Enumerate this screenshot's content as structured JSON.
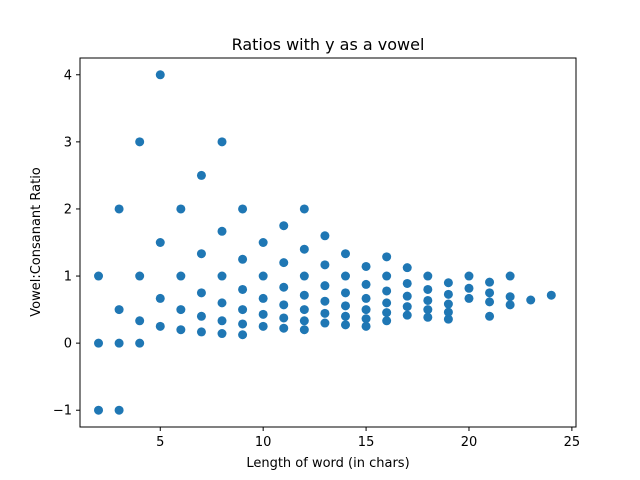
{
  "chart_data": {
    "type": "scatter",
    "title": "Ratios with y as a vowel",
    "xlabel": "Length of word (in chars)",
    "ylabel": "Vowel:Consanant Ratio",
    "xlim": [
      1.1,
      25.2
    ],
    "ylim": [
      -1.25,
      4.25
    ],
    "xticks": [
      5,
      10,
      15,
      20,
      25
    ],
    "yticks": [
      -1,
      0,
      1,
      2,
      3,
      4
    ],
    "grid": false,
    "marker_color": "#1f77b4",
    "points": [
      [
        2,
        -1
      ],
      [
        2,
        0
      ],
      [
        2,
        1
      ],
      [
        3,
        -1
      ],
      [
        3,
        0
      ],
      [
        3,
        0.5
      ],
      [
        3,
        2
      ],
      [
        4,
        0
      ],
      [
        4,
        0.333
      ],
      [
        4,
        1
      ],
      [
        4,
        3
      ],
      [
        5,
        0.25
      ],
      [
        5,
        0.667
      ],
      [
        5,
        1.5
      ],
      [
        5,
        4
      ],
      [
        6,
        0.2
      ],
      [
        6,
        0.5
      ],
      [
        6,
        1
      ],
      [
        6,
        2
      ],
      [
        7,
        0.167
      ],
      [
        7,
        0.4
      ],
      [
        7,
        0.75
      ],
      [
        7,
        1.333
      ],
      [
        7,
        2.5
      ],
      [
        8,
        0.143
      ],
      [
        8,
        0.333
      ],
      [
        8,
        0.6
      ],
      [
        8,
        1
      ],
      [
        8,
        1.667
      ],
      [
        8,
        3
      ],
      [
        9,
        0.125
      ],
      [
        9,
        0.286
      ],
      [
        9,
        0.5
      ],
      [
        9,
        0.8
      ],
      [
        9,
        1.25
      ],
      [
        9,
        2
      ],
      [
        10,
        0.25
      ],
      [
        10,
        0.429
      ],
      [
        10,
        0.667
      ],
      [
        10,
        1
      ],
      [
        10,
        1.5
      ],
      [
        11,
        0.222
      ],
      [
        11,
        0.375
      ],
      [
        11,
        0.571
      ],
      [
        11,
        0.833
      ],
      [
        11,
        1.2
      ],
      [
        11,
        1.75
      ],
      [
        12,
        0.2
      ],
      [
        12,
        0.333
      ],
      [
        12,
        0.5
      ],
      [
        12,
        0.714
      ],
      [
        12,
        1
      ],
      [
        12,
        1.4
      ],
      [
        12,
        2
      ],
      [
        13,
        0.3
      ],
      [
        13,
        0.444
      ],
      [
        13,
        0.625
      ],
      [
        13,
        0.857
      ],
      [
        13,
        1.167
      ],
      [
        13,
        1.6
      ],
      [
        14,
        0.273
      ],
      [
        14,
        0.4
      ],
      [
        14,
        0.556
      ],
      [
        14,
        0.75
      ],
      [
        14,
        1
      ],
      [
        14,
        1.333
      ],
      [
        15,
        0.25
      ],
      [
        15,
        0.364
      ],
      [
        15,
        0.5
      ],
      [
        15,
        0.667
      ],
      [
        15,
        0.875
      ],
      [
        15,
        1.143
      ],
      [
        16,
        0.333
      ],
      [
        16,
        0.455
      ],
      [
        16,
        0.6
      ],
      [
        16,
        0.778
      ],
      [
        16,
        1
      ],
      [
        16,
        1.286
      ],
      [
        17,
        0.417
      ],
      [
        17,
        0.545
      ],
      [
        17,
        0.7
      ],
      [
        17,
        0.889
      ],
      [
        17,
        1.125
      ],
      [
        18,
        0.385
      ],
      [
        18,
        0.5
      ],
      [
        18,
        0.636
      ],
      [
        18,
        0.8
      ],
      [
        18,
        1
      ],
      [
        19,
        0.357
      ],
      [
        19,
        0.462
      ],
      [
        19,
        0.583
      ],
      [
        19,
        0.727
      ],
      [
        19,
        0.9
      ],
      [
        20,
        0.667
      ],
      [
        20,
        0.818
      ],
      [
        20,
        1
      ],
      [
        21,
        0.4
      ],
      [
        21,
        0.615
      ],
      [
        21,
        0.75
      ],
      [
        21,
        0.909
      ],
      [
        22,
        0.571
      ],
      [
        22,
        0.692
      ],
      [
        22,
        1
      ],
      [
        23,
        0.643
      ],
      [
        24,
        0.714
      ]
    ]
  }
}
